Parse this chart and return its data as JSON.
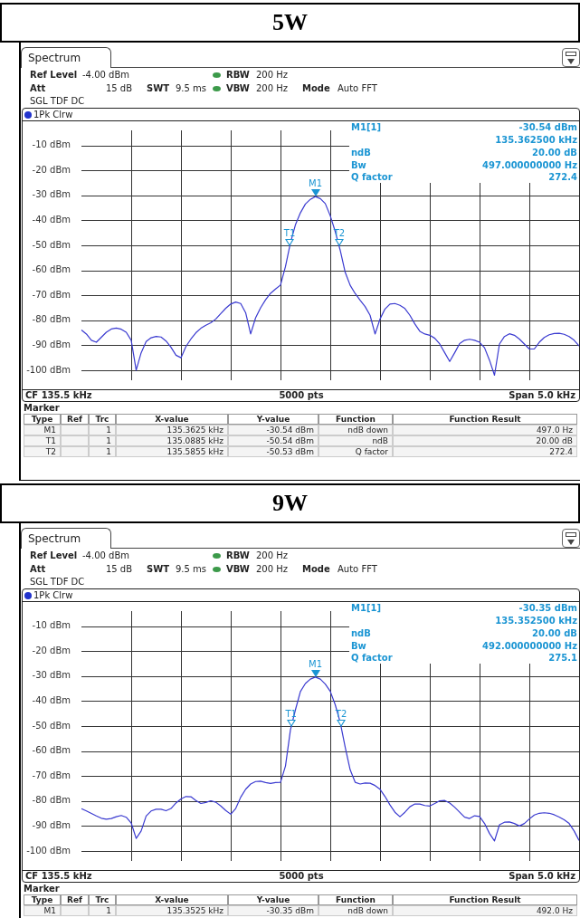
{
  "chart_data": [
    {
      "type": "line",
      "title": "5W",
      "categories": [
        null,
        null,
        null,
        null,
        null,
        null,
        null,
        null,
        null,
        null,
        null,
        null,
        null,
        null,
        null,
        null,
        null,
        null,
        null,
        null,
        null,
        null,
        null,
        null,
        null,
        null,
        null,
        null,
        null,
        null,
        null,
        null,
        null,
        null,
        null,
        null,
        null,
        null,
        null,
        null,
        null,
        null,
        null,
        null,
        null,
        null,
        null,
        null,
        null,
        null,
        null,
        null,
        null,
        null,
        null,
        null,
        null,
        null,
        null,
        null,
        null,
        null,
        null,
        null,
        null,
        null,
        null,
        null,
        null,
        null,
        null,
        null,
        null,
        null,
        null,
        null,
        null,
        null,
        null,
        null,
        null,
        null,
        null,
        null,
        null,
        null,
        null,
        null,
        null,
        null,
        null,
        null,
        null,
        null,
        null,
        null,
        null,
        null,
        null,
        null,
        null
      ],
      "ylim": [
        -104,
        -4
      ],
      "yticks": [
        {
          "value": -10,
          "label": "-10 dBm"
        },
        {
          "value": -20,
          "label": "-20 dBm"
        },
        {
          "value": -30,
          "label": "-30 dBm"
        },
        {
          "value": -40,
          "label": "-40 dBm"
        },
        {
          "value": -50,
          "label": "-50 dBm"
        },
        {
          "value": -60,
          "label": "-60 dBm"
        },
        {
          "value": -70,
          "label": "-70 dBm"
        },
        {
          "value": -80,
          "label": "-80 dBm"
        },
        {
          "value": -90,
          "label": "-90 dBm"
        },
        {
          "value": -100,
          "label": "-100 dBm"
        }
      ],
      "grid": true,
      "tick_labels": "y",
      "series": [
        {
          "color": "#3a3ad0",
          "values": [
            -83.9,
            -85.5,
            -88.0,
            -88.8,
            -86.8,
            -84.8,
            -83.5,
            -83.1,
            -83.6,
            -84.8,
            -88,
            -100,
            -93,
            -88.5,
            -87.0,
            -86.5,
            -86.7,
            -88.3,
            -90.8,
            -94,
            -95,
            -90.5,
            -87.5,
            -85,
            -83.2,
            -82,
            -81,
            -79.5,
            -77.3,
            -75.2,
            -73.5,
            -72.7,
            -73.3,
            -77,
            -85.5,
            -79,
            -75,
            -71.8,
            -69.2,
            -67.5,
            -65.9,
            -58.5,
            -49,
            -41.8,
            -37,
            -33.5,
            -31.6,
            -30.5,
            -31.3,
            -33.3,
            -38.2,
            -44.5,
            -52,
            -60.8,
            -66,
            -69.3,
            -72,
            -74.5,
            -78,
            -85.5,
            -79.5,
            -75.5,
            -73.5,
            -73.3,
            -74,
            -75.3,
            -78,
            -81.5,
            -84.4,
            -85.5,
            -86,
            -87.2,
            -89.5,
            -93,
            -96.5,
            -93,
            -89.3,
            -88,
            -87.6,
            -88,
            -88.8,
            -91,
            -96,
            -102,
            -89.5,
            -86.5,
            -85.4,
            -86,
            -87.5,
            -89.5,
            -91.5,
            -91.5,
            -88.8,
            -86.9,
            -85.8,
            -85.3,
            -85.2,
            -85.6,
            -86.5,
            -88,
            -90.3
          ]
        }
      ],
      "annotations": [
        "Spectrum",
        "Ref Level",
        "-4.00 dBm",
        "RBW",
        "200 Hz",
        "Att",
        "15 dB",
        "SWT",
        "9.5 ms",
        "VBW",
        "200 Hz",
        "Mode",
        "Auto FFT",
        "SGL TDF DC",
        "1Pk Clrw",
        "M1[1]",
        "-30.54 dBm",
        "135.362500 kHz",
        "ndB",
        "20.00 dB",
        "Bw",
        "497.000000000 Hz",
        "Q factor",
        "272.4",
        "CF 135.5 kHz",
        "5000 pts",
        "Span 5.0 kHz",
        "Marker",
        "Type",
        "Ref",
        "Trc",
        "X-value",
        "Y-value",
        "Function",
        "Function Result",
        "M1",
        "1",
        "135.3625 kHz",
        "-30.54 dBm",
        "ndB down",
        "497.0 Hz",
        "T1",
        "1",
        "135.0885 kHz",
        "-50.54 dBm",
        "ndB",
        "20.00 dB",
        "T2",
        "1",
        "135.5855 kHz",
        "-50.53 dBm",
        "Q factor",
        "272.4",
        {
          "text": "M1",
          "y": -30.54
        },
        {
          "text": "T1",
          "y": -50.54
        },
        {
          "text": "T2",
          "y": -50.53
        }
      ]
    },
    {
      "type": "line",
      "title": "9W",
      "categories": [
        null,
        null,
        null,
        null,
        null,
        null,
        null,
        null,
        null,
        null,
        null,
        null,
        null,
        null,
        null,
        null,
        null,
        null,
        null,
        null,
        null,
        null,
        null,
        null,
        null,
        null,
        null,
        null,
        null,
        null,
        null,
        null,
        null,
        null,
        null,
        null,
        null,
        null,
        null,
        null,
        null,
        null,
        null,
        null,
        null,
        null,
        null,
        null,
        null,
        null,
        null,
        null,
        null,
        null,
        null,
        null,
        null,
        null,
        null,
        null,
        null,
        null,
        null,
        null,
        null,
        null,
        null,
        null,
        null,
        null,
        null,
        null,
        null,
        null,
        null,
        null,
        null,
        null,
        null,
        null,
        null,
        null,
        null,
        null,
        null,
        null,
        null,
        null,
        null,
        null,
        null,
        null,
        null,
        null,
        null,
        null,
        null,
        null,
        null,
        null,
        null
      ],
      "ylim": [
        -104,
        -4
      ],
      "yticks": [
        {
          "value": -10,
          "label": "-10 dBm"
        },
        {
          "value": -20,
          "label": "-20 dBm"
        },
        {
          "value": -30,
          "label": "-30 dBm"
        },
        {
          "value": -40,
          "label": "-40 dBm"
        },
        {
          "value": -50,
          "label": "-50 dBm"
        },
        {
          "value": -60,
          "label": "-60 dBm"
        },
        {
          "value": -70,
          "label": "-70 dBm"
        },
        {
          "value": -80,
          "label": "-80 dBm"
        },
        {
          "value": -90,
          "label": "-90 dBm"
        },
        {
          "value": -100,
          "label": "-100 dBm"
        }
      ],
      "grid": true,
      "tick_labels": "y",
      "series": [
        {
          "color": "#3a3ad0",
          "values": [
            -83.1,
            -84,
            -85,
            -86,
            -86.9,
            -87.3,
            -87,
            -86.3,
            -85.8,
            -86.5,
            -88.8,
            -95,
            -92,
            -86,
            -84,
            -83.3,
            -83.3,
            -83.9,
            -83,
            -80.8,
            -79.2,
            -78.2,
            -78.3,
            -79.8,
            -81,
            -80.6,
            -79.9,
            -80.5,
            -82,
            -83.8,
            -85.3,
            -83,
            -78.5,
            -75.3,
            -73.2,
            -72.2,
            -72.1,
            -72.6,
            -73,
            -72.6,
            -72.5,
            -66,
            -51.5,
            -43.5,
            -36.2,
            -33,
            -31.2,
            -30.4,
            -31.2,
            -33.2,
            -36.1,
            -41.5,
            -48.5,
            -58.5,
            -67.5,
            -72.5,
            -73.2,
            -72.8,
            -72.9,
            -73.8,
            -75.3,
            -78.2,
            -81.6,
            -84.5,
            -86.3,
            -84.5,
            -82.3,
            -81.2,
            -81.2,
            -81.8,
            -82,
            -81,
            -79.9,
            -79.8,
            -80.8,
            -82.5,
            -84.5,
            -86.5,
            -87,
            -85.9,
            -86.2,
            -89,
            -93,
            -96,
            -89.5,
            -88.5,
            -88.4,
            -89,
            -90,
            -89,
            -87.2,
            -85.6,
            -84.9,
            -84.7,
            -84.9,
            -85.5,
            -86.4,
            -87.5,
            -89,
            -92,
            -95.8
          ]
        }
      ],
      "annotations": [
        "Spectrum",
        "Ref Level",
        "-4.00 dBm",
        "RBW",
        "200 Hz",
        "Att",
        "15 dB",
        "SWT",
        "9.5 ms",
        "VBW",
        "200 Hz",
        "Mode",
        "Auto FFT",
        "SGL TDF DC",
        "1Pk Clrw",
        "M1[1]",
        "-30.35 dBm",
        "135.352500 kHz",
        "ndB",
        "20.00 dB",
        "Bw",
        "492.000000000 Hz",
        "Q factor",
        "275.1",
        "CF 135.5 kHz",
        "5000 pts",
        "Span 5.0 kHz",
        "Marker",
        "Type",
        "Ref",
        "Trc",
        "X-value",
        "Y-value",
        "Function",
        "Function Result",
        "M1",
        "1",
        "135.3525 kHz",
        "-30.35 dBm",
        "ndB down",
        "492.0 Hz",
        {
          "text": "M1",
          "y": -30.35
        },
        {
          "text": "T1",
          "y": -50.4
        },
        {
          "text": "T2",
          "y": -50.4
        }
      ]
    }
  ]
}
